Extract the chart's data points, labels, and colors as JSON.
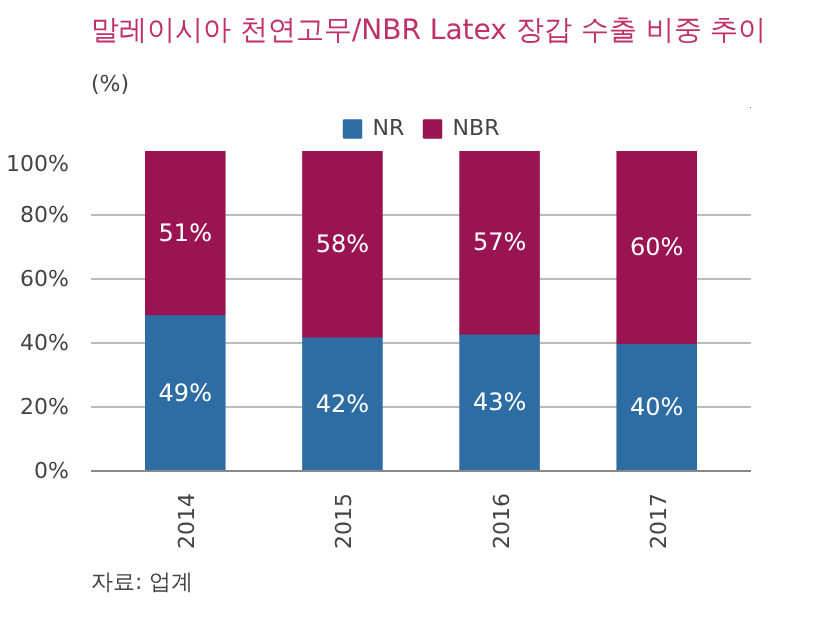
{
  "chart_data": {
    "type": "bar",
    "title": "말레이시아 천연고무/NBR Latex 장갑 수출 비중 추이",
    "ylabel": "(%)",
    "stacked": true,
    "categories": [
      "2014",
      "2015",
      "2016",
      "2017"
    ],
    "series": [
      {
        "name": "NR",
        "color": "#2e6da4",
        "values": [
          49,
          42,
          43,
          40
        ],
        "value_labels": [
          "49%",
          "42%",
          "43%",
          "40%"
        ]
      },
      {
        "name": "NBR",
        "color": "#9b1452",
        "values": [
          51,
          58,
          57,
          60
        ],
        "value_labels": [
          "51%",
          "58%",
          "57%",
          "60%"
        ]
      }
    ],
    "ylim": [
      0,
      100
    ],
    "yticks": [
      {
        "value": 0,
        "label": "0%"
      },
      {
        "value": 20,
        "label": "20%"
      },
      {
        "value": 40,
        "label": "40%"
      },
      {
        "value": 60,
        "label": "60%"
      },
      {
        "value": 80,
        "label": "80%"
      },
      {
        "value": 100,
        "label": "100%"
      }
    ],
    "grid": "y",
    "legend": "top",
    "annotations": [
      "자료: 업계"
    ]
  }
}
